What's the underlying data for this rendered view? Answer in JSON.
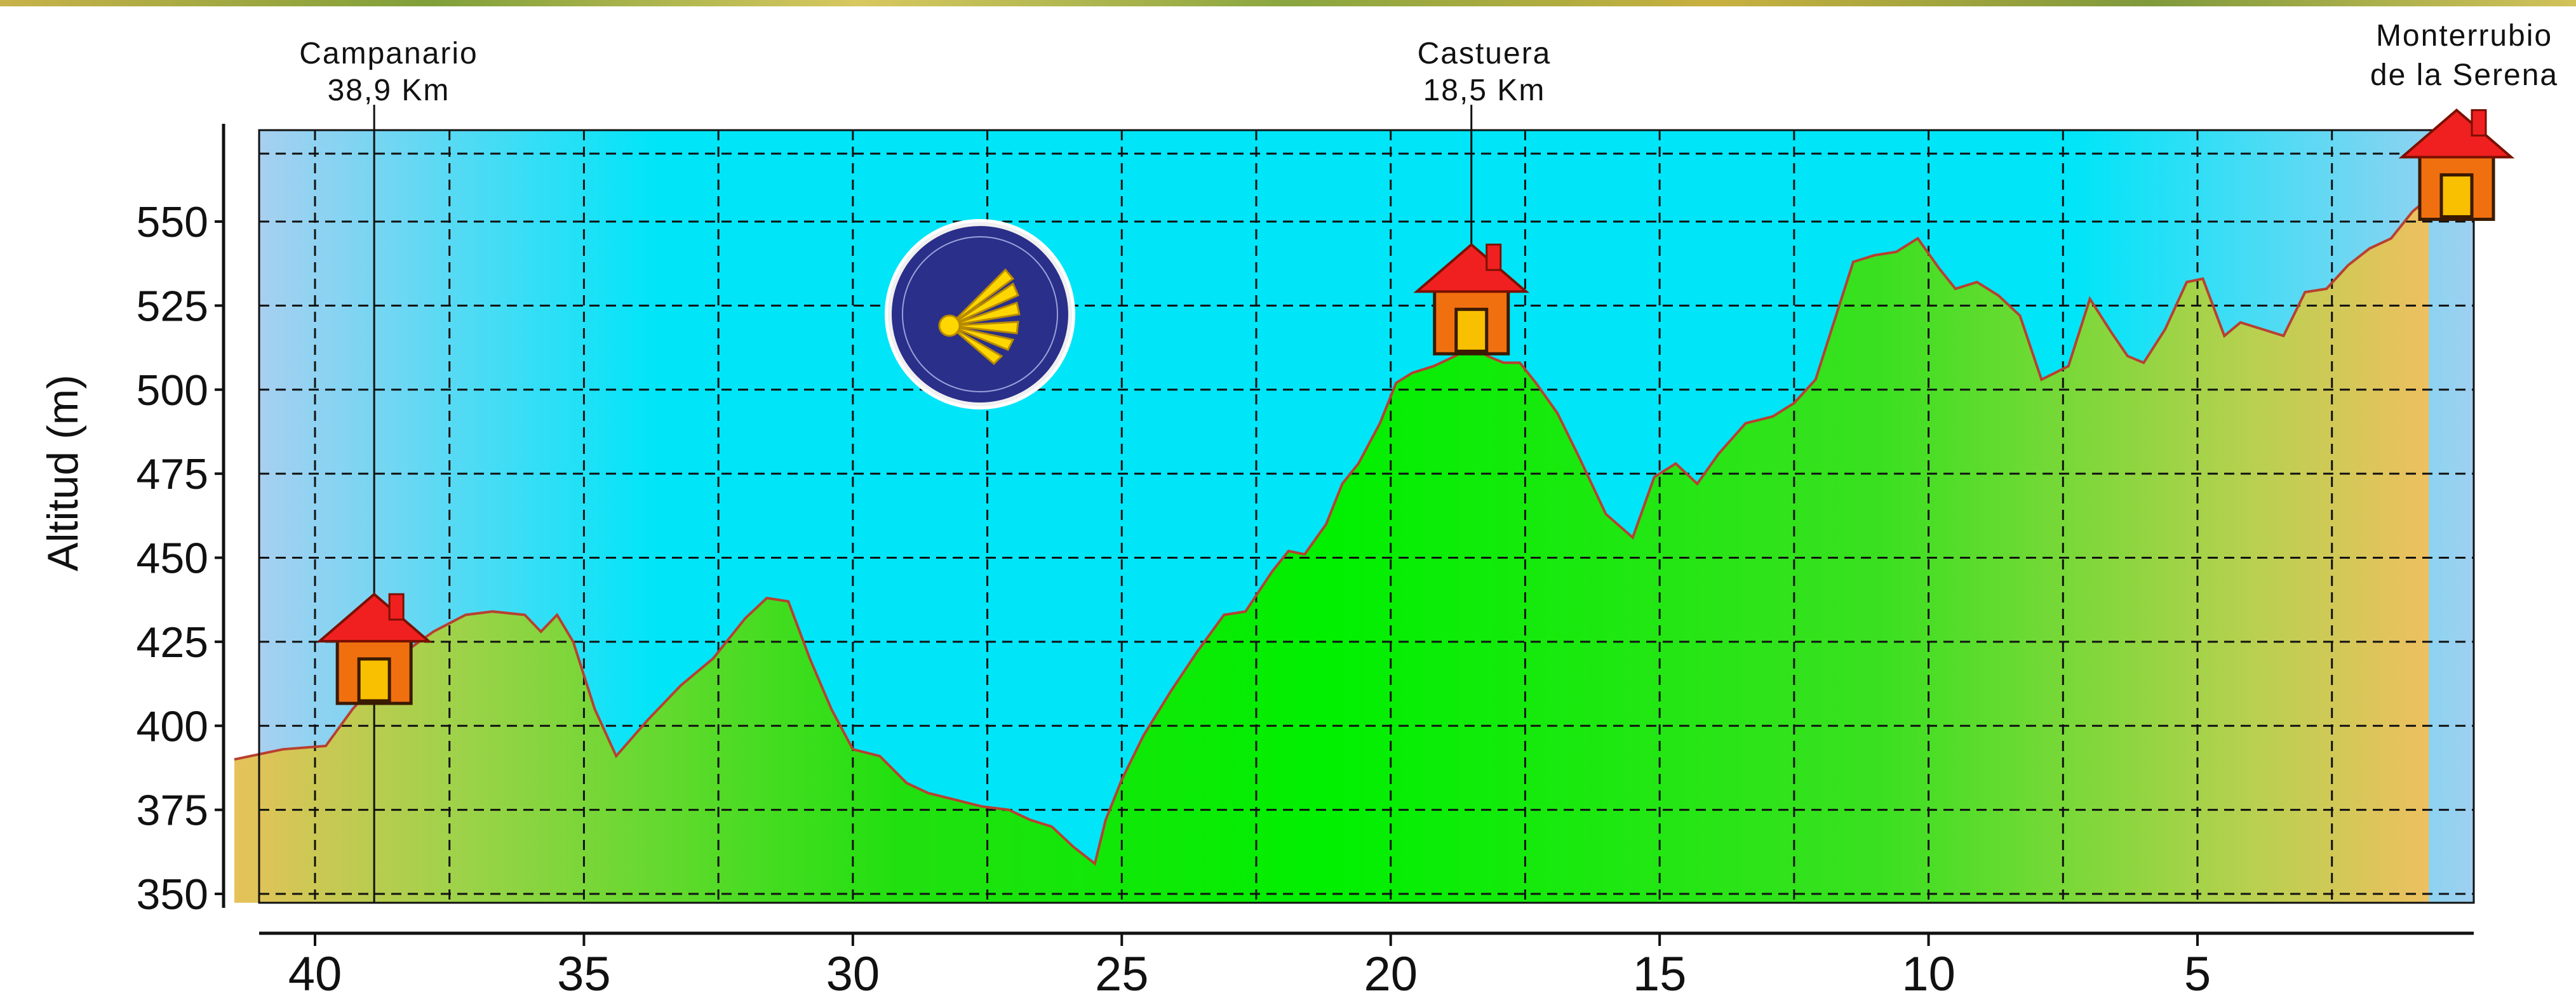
{
  "chart_data": {
    "type": "area",
    "title": "",
    "xlabel": "",
    "ylabel": "Altitud (m)",
    "x_reversed": true,
    "xlim": [
      0.7,
      41.5
    ],
    "ylim": [
      345,
      575
    ],
    "x_ticks": [
      40,
      35,
      30,
      25,
      20,
      15,
      10,
      5
    ],
    "y_ticks": [
      350,
      375,
      400,
      425,
      450,
      475,
      500,
      525,
      550
    ],
    "grid": true,
    "series": [
      {
        "x": [
          41.5,
          40.6,
          39.8,
          39.3,
          38.9,
          38.5,
          37.8,
          37.2,
          36.7,
          36.1,
          35.8,
          35.5,
          35.2,
          34.8,
          34.4,
          33.8,
          33.2,
          32.6,
          32.0,
          31.6,
          31.2,
          30.8,
          30.4,
          30.0,
          29.5,
          29.0,
          28.6,
          28.1,
          27.6,
          27.1,
          26.7,
          26.3,
          25.9,
          25.5,
          25.3,
          25.0,
          24.6,
          24.1,
          23.6,
          23.1,
          22.7,
          22.2,
          21.9,
          21.6,
          21.2,
          20.9,
          20.6,
          20.2,
          19.9,
          19.6,
          19.2,
          18.8,
          18.5,
          18.2,
          17.9,
          17.6,
          17.3,
          16.9,
          16.5,
          16.0,
          15.5,
          15.1,
          14.7,
          14.3,
          13.9,
          13.4,
          12.9,
          12.5,
          12.1,
          11.8,
          11.4,
          11.0,
          10.6,
          10.2,
          9.8,
          9.5,
          9.1,
          8.7,
          8.3,
          7.9,
          7.4,
          7.0,
          6.6,
          6.3,
          6.0,
          5.6,
          5.2,
          4.9,
          4.5,
          4.2,
          3.8,
          3.4,
          3.0,
          2.6,
          2.2,
          1.8,
          1.4,
          1.0,
          0.7
        ],
        "y": [
          390,
          393,
          394,
          405,
          412,
          420,
          428,
          433,
          434,
          433,
          428,
          433,
          425,
          405,
          391,
          402,
          412,
          420,
          432,
          438,
          437,
          420,
          405,
          393,
          391,
          383,
          380,
          378,
          376,
          375,
          372,
          370,
          364,
          359,
          372,
          384,
          397,
          410,
          422,
          433,
          434,
          446,
          452,
          451,
          460,
          472,
          478,
          490,
          502,
          505,
          507,
          510,
          513,
          510,
          508,
          508,
          502,
          493,
          480,
          463,
          456,
          474,
          478,
          472,
          481,
          490,
          492,
          496,
          503,
          518,
          538,
          540,
          541,
          545,
          536,
          530,
          532,
          528,
          522,
          503,
          507,
          527,
          517,
          510,
          508,
          518,
          532,
          533,
          516,
          520,
          518,
          516,
          529,
          530,
          537,
          542,
          545,
          553,
          557
        ],
        "color_high": "#00f000",
        "color_low": "#b8c84a",
        "line_color": "#b84030"
      }
    ],
    "locations": [
      {
        "name": "Campanario",
        "dist": "38,9 Km",
        "km": 38.9,
        "marker_alt": 418
      },
      {
        "name": "Castuera",
        "dist": "18,5 Km",
        "km": 18.5,
        "marker_alt": 522
      },
      {
        "name": "Monterrubio",
        "name2": "de la Serena",
        "km": 0.7,
        "marker_alt": 562
      }
    ],
    "colors": {
      "sky_top": "#9fd7ea",
      "sky_mid": "#00e7f7",
      "house_body": "#f07010",
      "house_roof": "#f02020",
      "door": "#f8c000",
      "emblem_bg": "#2a2f8a",
      "emblem_shell": "#ffd700"
    }
  }
}
